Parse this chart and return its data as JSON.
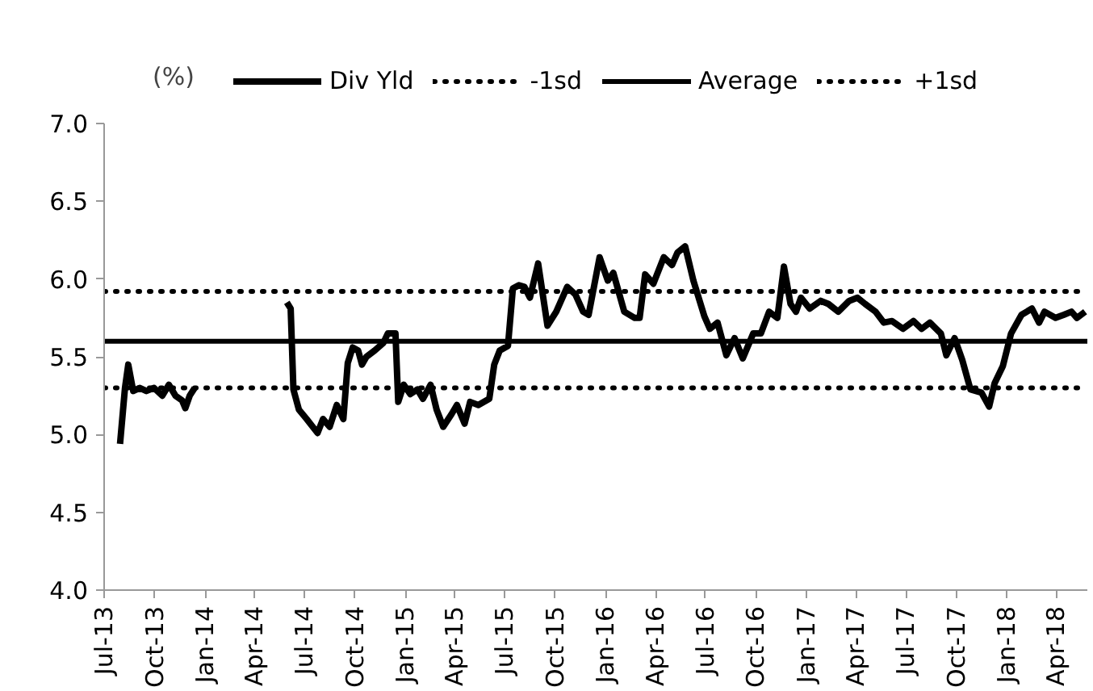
{
  "chart_data": {
    "type": "line",
    "ylabel": "(%)",
    "x": [
      "2013-07-30",
      "2013-08-08",
      "2013-08-14",
      "2013-08-23",
      "2013-09-04",
      "2013-09-16",
      "2013-09-30",
      "2013-10-15",
      "2013-10-27",
      "2013-11-08",
      "2013-11-20",
      "2013-11-26",
      "2013-12-04",
      "2013-12-13",
      "2014-03-01",
      "2014-05-30",
      "2014-06-06",
      "2014-06-11",
      "2014-06-21",
      "2014-07-05",
      "2014-07-25",
      "2014-08-04",
      "2014-08-16",
      "2014-08-29",
      "2014-09-10",
      "2014-09-18",
      "2014-09-27",
      "2014-10-07",
      "2014-10-14",
      "2014-10-22",
      "2014-11-06",
      "2014-11-22",
      "2014-11-30",
      "2014-12-14",
      "2014-12-19",
      "2014-12-29",
      "2015-01-10",
      "2015-01-23",
      "2015-02-02",
      "2015-02-16",
      "2015-02-27",
      "2015-03-11",
      "2015-03-26",
      "2015-04-05",
      "2015-04-19",
      "2015-04-29",
      "2015-05-14",
      "2015-06-03",
      "2015-06-12",
      "2015-06-22",
      "2015-07-07",
      "2015-07-16",
      "2015-07-27",
      "2015-08-06",
      "2015-08-16",
      "2015-08-31",
      "2015-09-17",
      "2015-10-03",
      "2015-10-23",
      "2015-11-07",
      "2015-11-21",
      "2015-12-01",
      "2015-12-21",
      "2016-01-05",
      "2016-01-15",
      "2016-02-04",
      "2016-02-23",
      "2016-03-03",
      "2016-03-13",
      "2016-03-28",
      "2016-04-16",
      "2016-05-01",
      "2016-05-11",
      "2016-05-25",
      "2016-06-09",
      "2016-06-29",
      "2016-07-09",
      "2016-07-23",
      "2016-08-08",
      "2016-08-23",
      "2016-09-07",
      "2016-09-26",
      "2016-10-10",
      "2016-10-25",
      "2016-11-09",
      "2016-11-21",
      "2016-12-03",
      "2016-12-13",
      "2016-12-22",
      "2017-01-07",
      "2017-01-27",
      "2017-02-10",
      "2017-02-28",
      "2017-03-20",
      "2017-04-04",
      "2017-04-18",
      "2017-05-07",
      "2017-05-22",
      "2017-06-06",
      "2017-06-26",
      "2017-07-15",
      "2017-07-30",
      "2017-08-14",
      "2017-09-03",
      "2017-09-13",
      "2017-09-28",
      "2017-10-12",
      "2017-10-27",
      "2017-11-16",
      "2017-11-30",
      "2017-12-10",
      "2017-12-25",
      "2018-01-09",
      "2018-01-28",
      "2018-02-16",
      "2018-03-01",
      "2018-03-11",
      "2018-03-31",
      "2018-04-15",
      "2018-04-29",
      "2018-05-09",
      "2018-05-24"
    ],
    "series": [
      {
        "name": "Div Yld",
        "color": "#000000",
        "values": [
          4.94,
          5.3,
          5.45,
          5.28,
          5.3,
          5.28,
          5.3,
          5.25,
          5.32,
          5.25,
          5.22,
          5.17,
          5.25,
          5.3,
          null,
          5.85,
          5.81,
          5.29,
          5.16,
          5.1,
          5.01,
          5.1,
          5.05,
          5.19,
          5.1,
          5.46,
          5.56,
          5.54,
          5.45,
          5.5,
          5.54,
          5.59,
          5.65,
          5.65,
          5.21,
          5.32,
          5.26,
          5.29,
          5.23,
          5.32,
          5.16,
          5.05,
          5.13,
          5.19,
          5.07,
          5.21,
          5.19,
          5.23,
          5.45,
          5.54,
          5.57,
          5.94,
          5.96,
          5.95,
          5.88,
          6.1,
          5.7,
          5.79,
          5.95,
          5.9,
          5.79,
          5.77,
          6.14,
          5.99,
          6.04,
          5.79,
          5.75,
          5.75,
          6.03,
          5.97,
          6.14,
          6.09,
          6.17,
          6.21,
          5.99,
          5.76,
          5.68,
          5.72,
          5.51,
          5.62,
          5.49,
          5.65,
          5.65,
          5.79,
          5.75,
          6.08,
          5.84,
          5.79,
          5.88,
          5.81,
          5.86,
          5.84,
          5.79,
          5.86,
          5.88,
          5.84,
          5.79,
          5.72,
          5.73,
          5.68,
          5.73,
          5.68,
          5.72,
          5.65,
          5.51,
          5.62,
          5.48,
          5.29,
          5.27,
          5.18,
          5.33,
          5.44,
          5.65,
          5.77,
          5.81,
          5.72,
          5.79,
          5.75,
          5.77,
          5.79,
          5.75,
          5.79
        ]
      }
    ],
    "ref_lines": [
      {
        "axis": "y",
        "value": 5.3,
        "label": "-1sd",
        "color": "#000000",
        "line_style": "dotted"
      },
      {
        "axis": "y",
        "value": 5.6,
        "label": "Average",
        "color": "#000000",
        "line_style": "solid"
      },
      {
        "axis": "y",
        "value": 5.92,
        "label": "+1sd",
        "color": "#000000",
        "line_style": "dotted"
      }
    ],
    "xlim": [
      "2013-07-01",
      "2018-05-28"
    ],
    "xticks": [
      {
        "value": "2013-07-01",
        "label": "Jul-13"
      },
      {
        "value": "2013-10-01",
        "label": "Oct-13"
      },
      {
        "value": "2014-01-01",
        "label": "Jan-14"
      },
      {
        "value": "2014-04-01",
        "label": "Apr-14"
      },
      {
        "value": "2014-07-01",
        "label": "Jul-14"
      },
      {
        "value": "2014-10-01",
        "label": "Oct-14"
      },
      {
        "value": "2015-01-01",
        "label": "Jan-15"
      },
      {
        "value": "2015-04-01",
        "label": "Apr-15"
      },
      {
        "value": "2015-07-01",
        "label": "Jul-15"
      },
      {
        "value": "2015-10-01",
        "label": "Oct-15"
      },
      {
        "value": "2016-01-01",
        "label": "Jan-16"
      },
      {
        "value": "2016-04-01",
        "label": "Apr-16"
      },
      {
        "value": "2016-07-01",
        "label": "Jul-16"
      },
      {
        "value": "2016-10-01",
        "label": "Oct-16"
      },
      {
        "value": "2017-01-01",
        "label": "Jan-17"
      },
      {
        "value": "2017-04-01",
        "label": "Apr-17"
      },
      {
        "value": "2017-07-01",
        "label": "Jul-17"
      },
      {
        "value": "2017-10-01",
        "label": "Oct-17"
      },
      {
        "value": "2018-01-01",
        "label": "Jan-18"
      },
      {
        "value": "2018-04-01",
        "label": "Apr-18"
      }
    ],
    "ylim": [
      4.0,
      7.0
    ],
    "yticks": [
      {
        "value": 4.0,
        "label": "4.0"
      },
      {
        "value": 4.5,
        "label": "4.5"
      },
      {
        "value": 5.0,
        "label": "5.0"
      },
      {
        "value": 5.5,
        "label": "5.5"
      },
      {
        "value": 6.0,
        "label": "6.0"
      },
      {
        "value": 6.5,
        "label": "6.5"
      },
      {
        "value": 7.0,
        "label": "7.0"
      }
    ],
    "grid": false,
    "legend": "top",
    "line_style": "solid",
    "marker": "none"
  }
}
